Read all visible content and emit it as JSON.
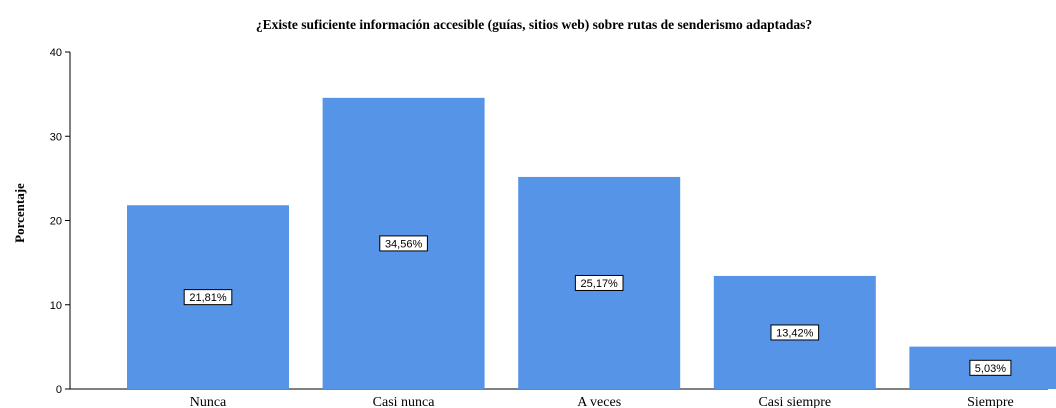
{
  "chart_data": {
    "type": "bar",
    "title": "¿Existe suficiente información accesible (guías, sitios web) sobre rutas de senderismo adaptadas?",
    "xlabel": "",
    "ylabel": "Porcentaje",
    "ylim": [
      0,
      40
    ],
    "yticks": [
      0,
      10,
      20,
      30,
      40
    ],
    "grid": false,
    "categories": [
      "Nunca",
      "Casi nunca",
      "A veces",
      "Casi siempre",
      "Siempre"
    ],
    "values": [
      21.81,
      34.56,
      25.17,
      13.42,
      5.03
    ],
    "data_labels": [
      "21,81%",
      "34,56%",
      "25,17%",
      "13,42%",
      "5,03%"
    ],
    "bar_color": "#5594e6"
  }
}
